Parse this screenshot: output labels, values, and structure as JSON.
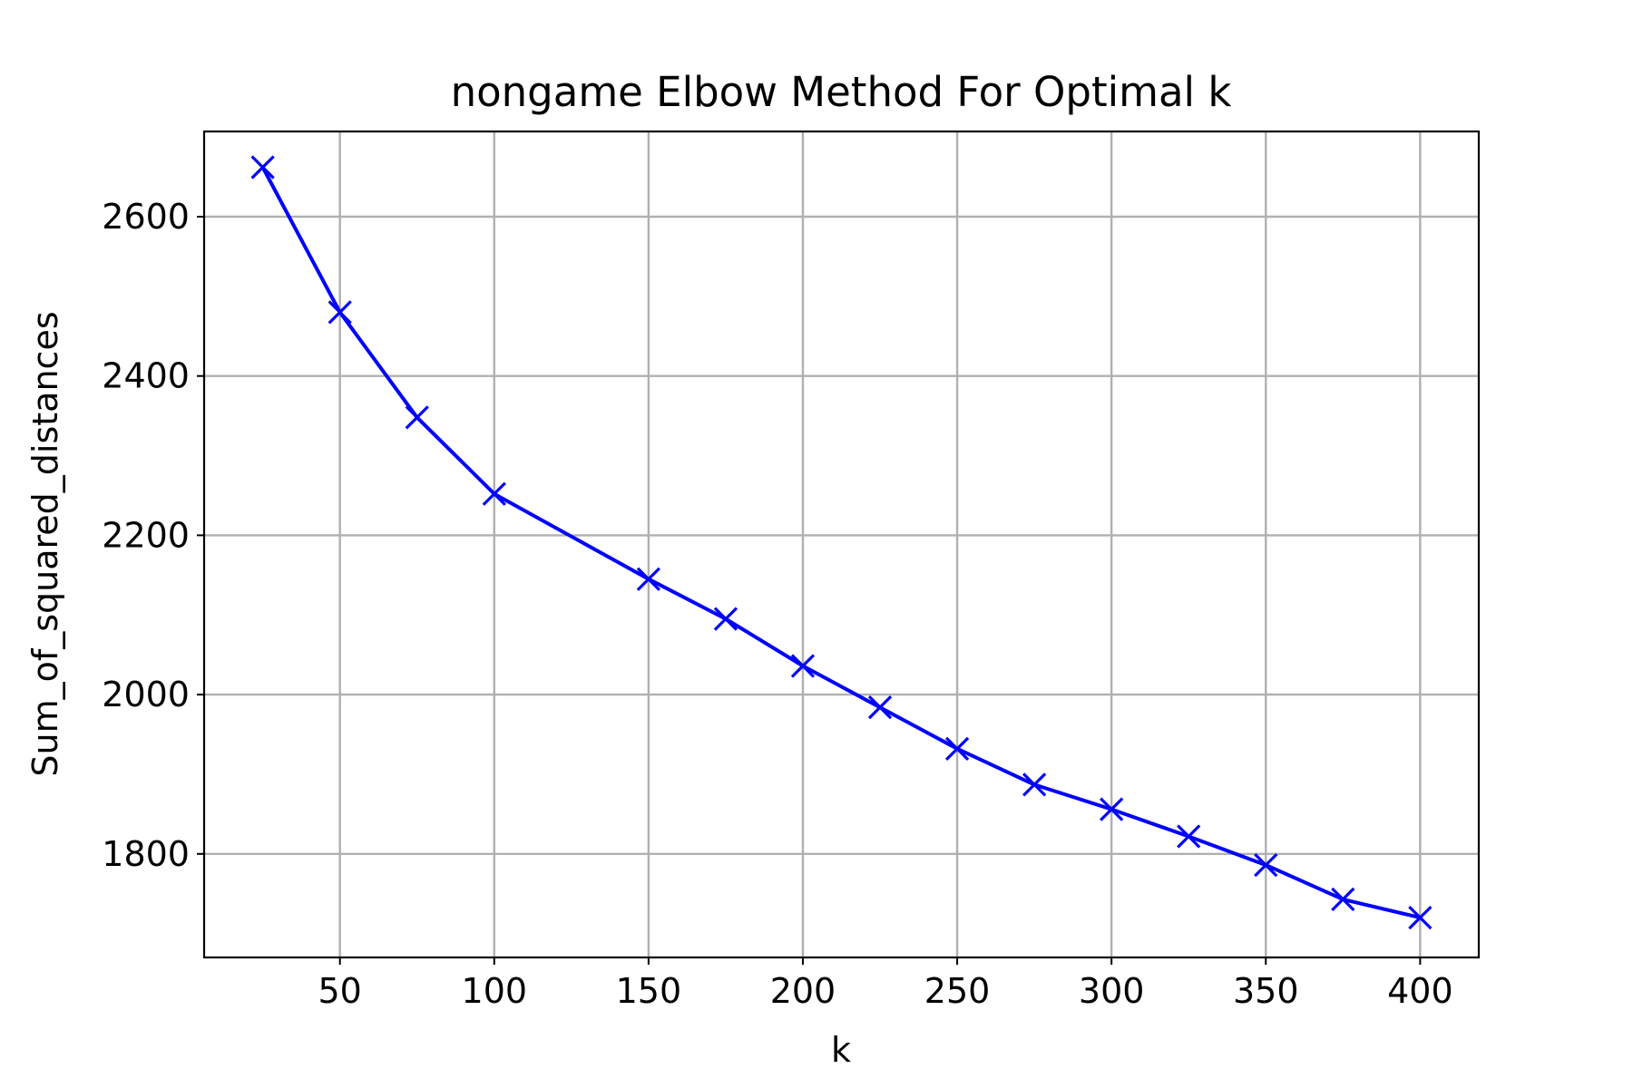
{
  "chart_data": {
    "type": "line",
    "title": "nongame Elbow Method For Optimal k",
    "xlabel": "k",
    "ylabel": "Sum_of_squared_distances",
    "xlim": [
      6,
      419
    ],
    "ylim": [
      1670,
      2707
    ],
    "xticks": [
      50,
      100,
      150,
      200,
      250,
      300,
      350,
      400
    ],
    "yticks": [
      1800,
      2000,
      2200,
      2400,
      2600
    ],
    "grid": true,
    "line_color": "#0000ff",
    "marker": "x",
    "series": [
      {
        "x": [
          25,
          50,
          75,
          100,
          150,
          175,
          200,
          225,
          250,
          275,
          300,
          325,
          350,
          375,
          400
        ],
        "y": [
          2662,
          2480,
          2348,
          2252,
          2145,
          2095,
          2036,
          1984,
          1932,
          1887,
          1856,
          1822,
          1786,
          1743,
          1720
        ]
      }
    ]
  }
}
